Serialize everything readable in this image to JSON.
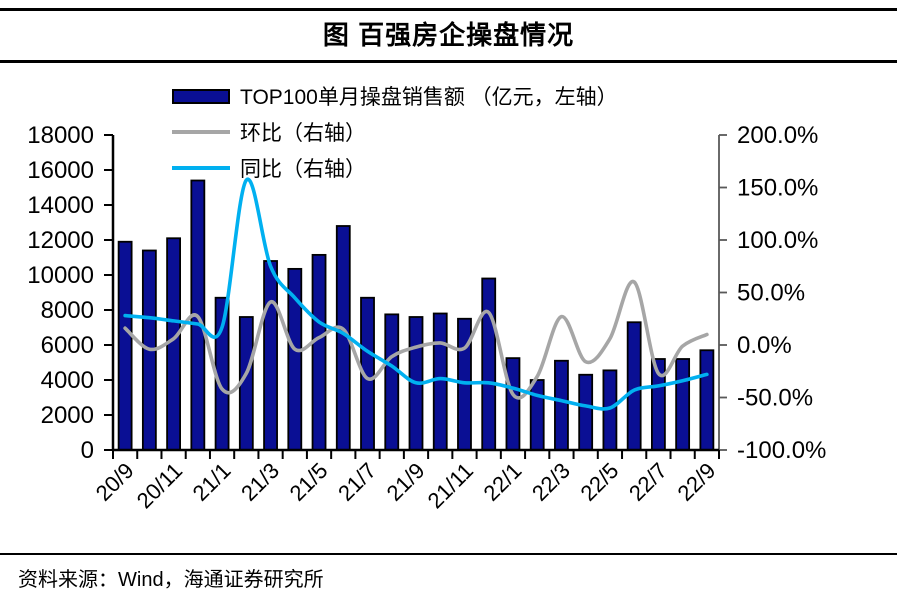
{
  "header": {
    "title": "图  百强房企操盘情况"
  },
  "legend": [
    {
      "label": "TOP100单月操盘销售额 （亿元，左轴）",
      "type": "bar",
      "color": "#0a0f94"
    },
    {
      "label": "环比（右轴）",
      "type": "line",
      "color": "#a6a6a6"
    },
    {
      "label": "同比（右轴）",
      "type": "line",
      "color": "#00b0f0"
    }
  ],
  "footer": {
    "source": "资料来源：Wind，海通证券研究所"
  },
  "chart_data": {
    "type": "combo",
    "categories": [
      "20/9",
      "20/10",
      "20/11",
      "20/12",
      "21/1",
      "21/2",
      "21/3",
      "21/4",
      "21/5",
      "21/6",
      "21/7",
      "21/8",
      "21/9",
      "21/10",
      "21/11",
      "21/12",
      "22/1",
      "22/2",
      "22/3",
      "22/4",
      "22/5",
      "22/6",
      "22/7",
      "22/8",
      "22/9"
    ],
    "x_tick_labels": [
      "20/9",
      "20/11",
      "21/1",
      "21/3",
      "21/5",
      "21/7",
      "21/9",
      "21/11",
      "22/1",
      "22/3",
      "22/5",
      "22/7",
      "22/9"
    ],
    "series": [
      {
        "name": "TOP100单月操盘销售额（亿元，左轴）",
        "type": "bar",
        "axis": "left",
        "color": "#0a0f94",
        "values": [
          11900,
          11400,
          12100,
          15400,
          8700,
          7600,
          10800,
          10350,
          11150,
          12800,
          8700,
          7750,
          7600,
          7800,
          7500,
          9800,
          5250,
          4000,
          5100,
          4300,
          4550,
          7300,
          5200,
          5200,
          5700
        ]
      },
      {
        "name": "环比（右轴）",
        "type": "line",
        "axis": "right",
        "color": "#a6a6a6",
        "values": [
          16,
          -4,
          6,
          27,
          -42,
          -27,
          41,
          -4,
          7,
          15,
          -32,
          -11,
          -2,
          2,
          -3,
          31,
          -47,
          -30,
          27,
          -16,
          6,
          60,
          -27,
          -1,
          10
        ]
      },
      {
        "name": "同比（右轴）",
        "type": "line",
        "axis": "right",
        "color": "#00b0f0",
        "values": [
          28,
          26,
          23,
          20,
          17,
          157,
          75,
          45,
          22,
          11,
          -6,
          -20,
          -36,
          -32,
          -36,
          -36,
          -41,
          -48,
          -53,
          -58,
          -60,
          -43,
          -39,
          -34,
          -28
        ]
      }
    ],
    "left_axis": {
      "min": 0,
      "max": 18000,
      "step": 2000,
      "tick_labels": [
        "0",
        "2000",
        "4000",
        "6000",
        "8000",
        "10000",
        "12000",
        "14000",
        "16000",
        "18000"
      ]
    },
    "right_axis": {
      "min": -100,
      "max": 200,
      "step": 50,
      "tick_labels": [
        "-100.0%",
        "-50.0%",
        "0.0%",
        "50.0%",
        "100.0%",
        "150.0%",
        "200.0%"
      ]
    },
    "grid": false,
    "legend_position": "top-left",
    "smooth_lines": true
  }
}
